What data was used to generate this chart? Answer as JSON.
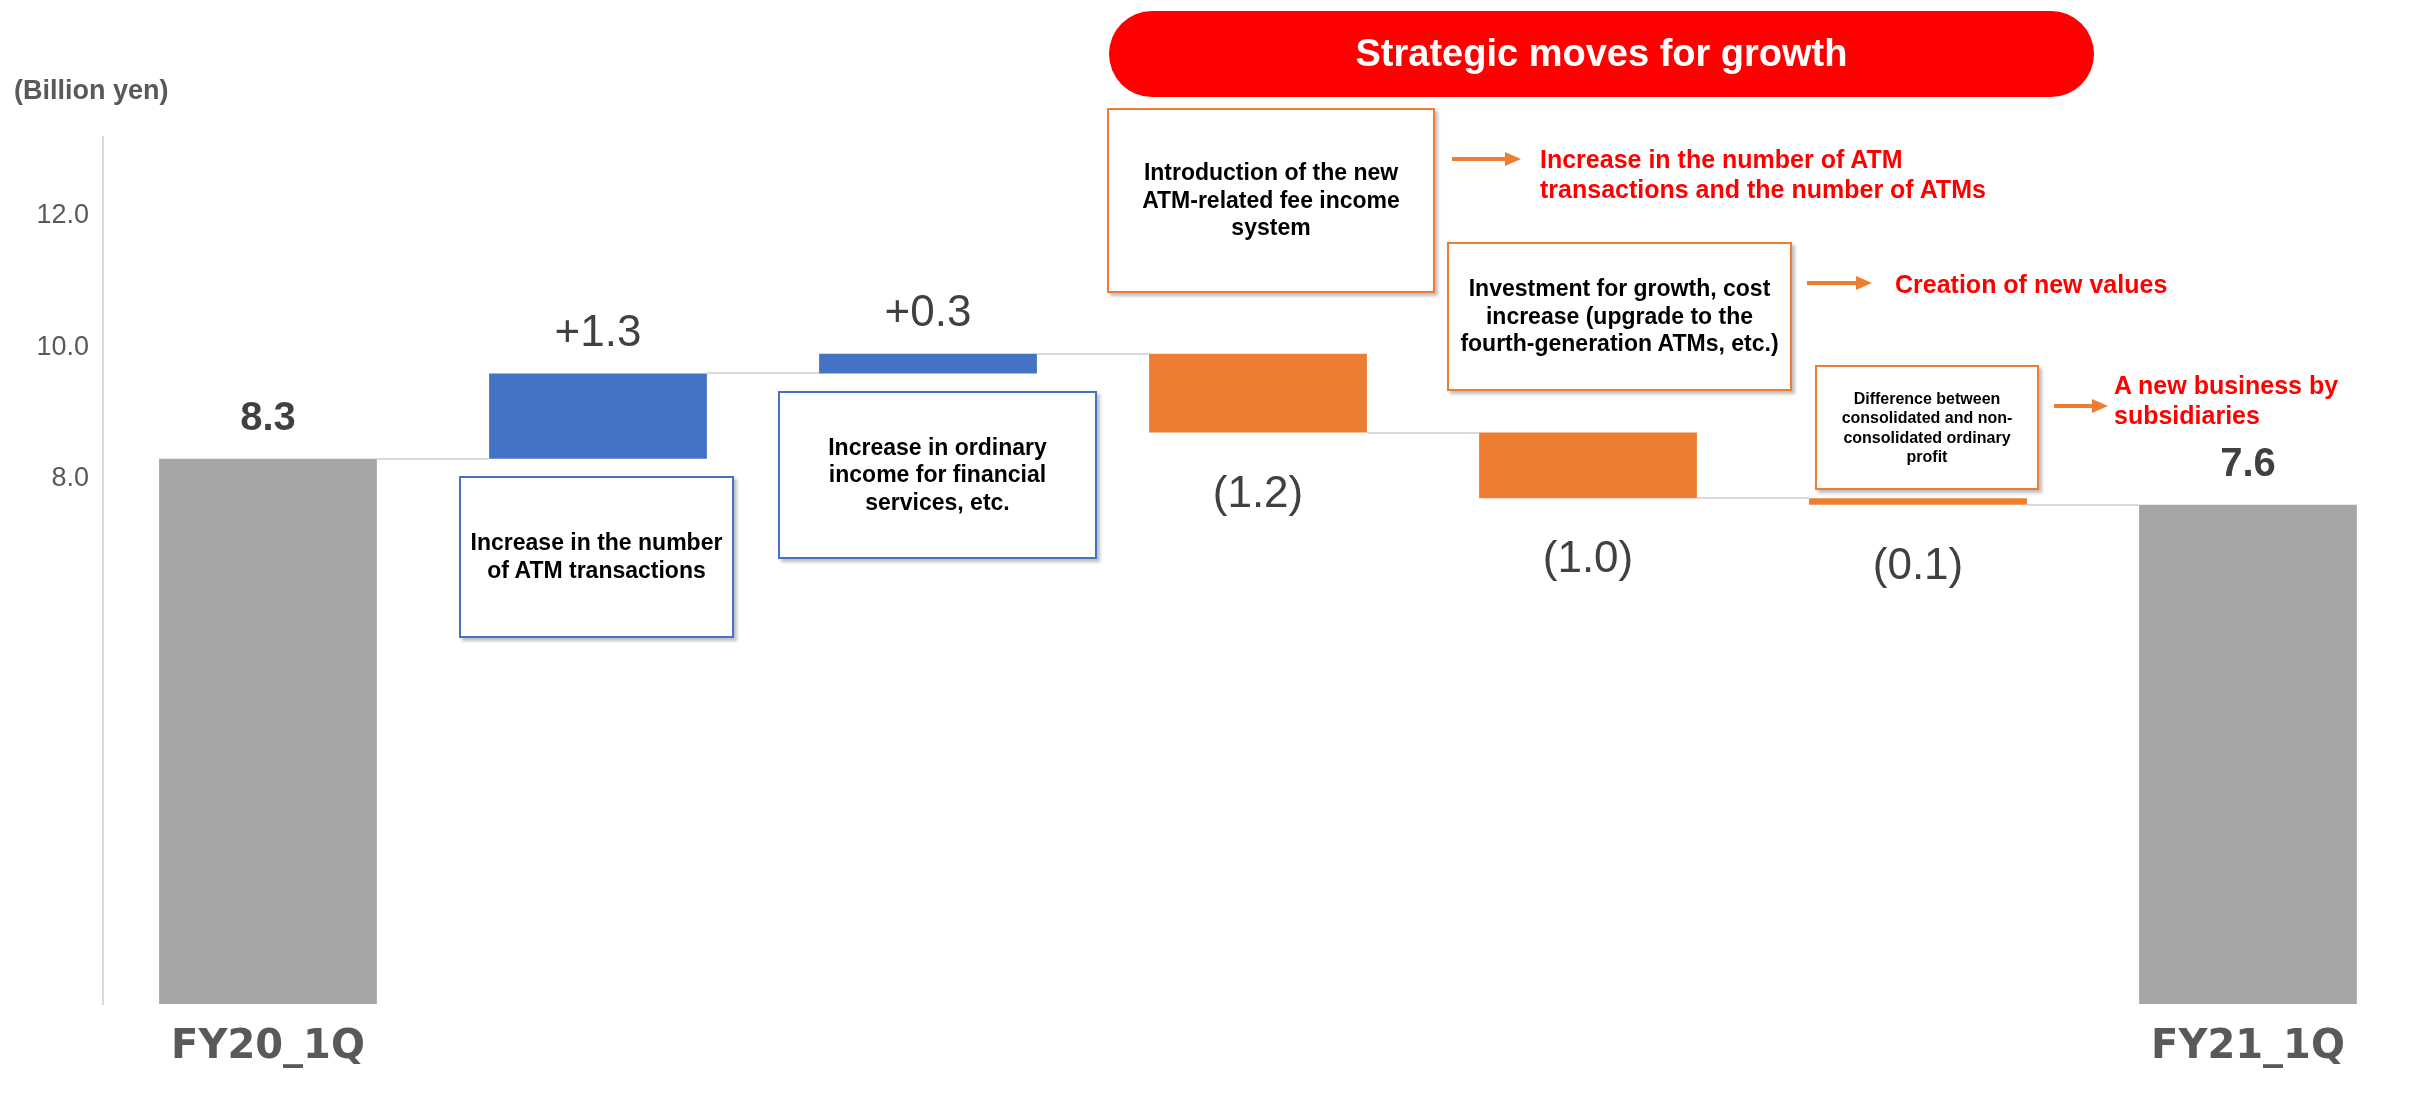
{
  "chart_data": {
    "type": "bar",
    "ylabel": "(Billion yen)",
    "categories": [
      "FY20_1Q",
      null,
      null,
      null,
      null,
      null,
      "FY21_1Q"
    ],
    "values": [
      8.3,
      1.3,
      0.3,
      -1.2,
      -1.0,
      -0.1,
      7.6
    ],
    "base": [
      0,
      8.3,
      9.6,
      9.9,
      8.7,
      7.7,
      0
    ],
    "colors": [
      "#a6a6a6",
      "#4472c4",
      "#4472c4",
      "#ed7d31",
      "#ed7d31",
      "#ed7d31",
      "#a6a6a6"
    ],
    "value_labels": [
      "8.3",
      "+1.3",
      "+0.3",
      "(1.2)",
      "(1.0)",
      "(0.1)",
      "7.6"
    ],
    "ylim": [
      0,
      13.2
    ],
    "yticks": [
      {
        "value": 8,
        "label": "8.0"
      },
      {
        "value": 10,
        "label": "10.0"
      },
      {
        "value": 12,
        "label": "12.0"
      }
    ],
    "grid": false,
    "legend": false,
    "annotations": [
      "Strategic moves for growth",
      "Increase in the number of ATM transactions",
      "Increase in ordinary income for financial services, etc.",
      "Introduction of the new ATM-related fee income system",
      "Investment for growth, cost increase (upgrade to the fourth-generation ATMs, etc.)",
      "Difference between consolidated and non-consolidated ordinary profit",
      "Increase in the number of ATM transactions and the number of ATMs",
      "Creation of new values",
      "A new business by subsidiaries"
    ]
  }
}
